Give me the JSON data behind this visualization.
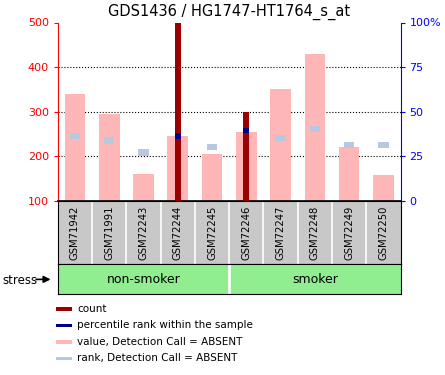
{
  "title": "GDS1436 / HG1747-HT1764_s_at",
  "samples": [
    "GSM71942",
    "GSM71991",
    "GSM72243",
    "GSM72244",
    "GSM72245",
    "GSM72246",
    "GSM72247",
    "GSM72248",
    "GSM72249",
    "GSM72250"
  ],
  "count_values": [
    0,
    0,
    0,
    500,
    0,
    300,
    0,
    0,
    0,
    0
  ],
  "percentile_rank_values": [
    0,
    0,
    0,
    245,
    0,
    258,
    0,
    0,
    0,
    0
  ],
  "absent_value": [
    340,
    295,
    160,
    245,
    205,
    255,
    350,
    430,
    220,
    157
  ],
  "absent_rank": [
    245,
    235,
    208,
    0,
    220,
    0,
    240,
    260,
    225,
    225
  ],
  "ylim": [
    100,
    500
  ],
  "yticks": [
    100,
    200,
    300,
    400,
    500
  ],
  "ytick_labels_left": [
    "100",
    "200",
    "300",
    "400",
    "500"
  ],
  "ytick_labels_right": [
    "0",
    "25",
    "50",
    "75",
    "100%"
  ],
  "color_count": "#9B0000",
  "color_percentile": "#00008B",
  "color_absent_value": "#FFB6B6",
  "color_absent_rank": "#B8C8E0",
  "xlabel_area_color": "#C8C8C8",
  "group_area_color": "#90EE90",
  "stress_label": "stress",
  "nonsmoker_label": "non-smoker",
  "smoker_label": "smoker",
  "legend_items": [
    {
      "label": "count",
      "color": "#9B0000"
    },
    {
      "label": "percentile rank within the sample",
      "color": "#00008B"
    },
    {
      "label": "value, Detection Call = ABSENT",
      "color": "#FFB6B6"
    },
    {
      "label": "rank, Detection Call = ABSENT",
      "color": "#B8C8E0"
    }
  ]
}
